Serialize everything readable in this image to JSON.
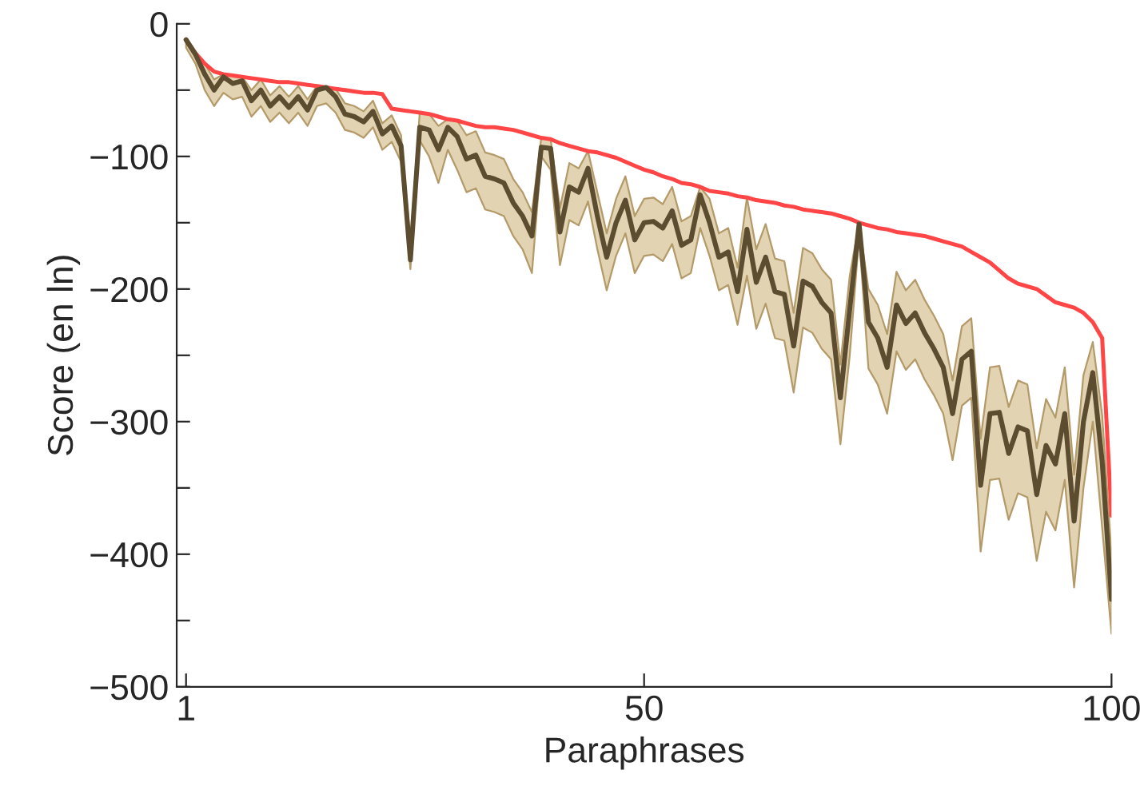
{
  "chart_data": {
    "type": "line",
    "xlabel": "Paraphrases",
    "ylabel": "Score (en ln)",
    "x": [
      1,
      2,
      3,
      4,
      5,
      6,
      7,
      8,
      9,
      10,
      11,
      12,
      13,
      14,
      15,
      16,
      17,
      18,
      19,
      20,
      21,
      22,
      23,
      24,
      25,
      26,
      27,
      28,
      29,
      30,
      31,
      32,
      33,
      34,
      35,
      36,
      37,
      38,
      39,
      40,
      41,
      42,
      43,
      44,
      45,
      46,
      47,
      48,
      49,
      50,
      51,
      52,
      53,
      54,
      55,
      56,
      57,
      58,
      59,
      60,
      61,
      62,
      63,
      64,
      65,
      66,
      67,
      68,
      69,
      70,
      71,
      72,
      73,
      74,
      75,
      76,
      77,
      78,
      79,
      80,
      81,
      82,
      83,
      84,
      85,
      86,
      87,
      88,
      89,
      90,
      91,
      92,
      93,
      94,
      95,
      96,
      97,
      98,
      99,
      100
    ],
    "series": [
      {
        "color": "#ff4545",
        "values": [
          -12,
          -22,
          -30,
          -36,
          -38,
          -39,
          -40,
          -41,
          -42,
          -43,
          -44,
          -44,
          -45,
          -46,
          -47,
          -48,
          -49,
          -50,
          -51,
          -52,
          -52,
          -53,
          -64,
          -65,
          -66,
          -67,
          -68,
          -70,
          -72,
          -73,
          -75,
          -77,
          -78,
          -78,
          -79,
          -80,
          -82,
          -84,
          -86,
          -87,
          -90,
          -92,
          -94,
          -96,
          -97,
          -99,
          -101,
          -104,
          -107,
          -110,
          -112,
          -115,
          -117,
          -120,
          -121,
          -123,
          -126,
          -127,
          -128,
          -130,
          -131,
          -133,
          -134,
          -135,
          -137,
          -138,
          -140,
          -141,
          -142,
          -143,
          -145,
          -147,
          -150,
          -152,
          -154,
          -155,
          -157,
          -158,
          -159,
          -160,
          -162,
          -164,
          -166,
          -168,
          -172,
          -176,
          -180,
          -186,
          -192,
          -196,
          -198,
          -200,
          -205,
          -210,
          -212,
          -214,
          -218,
          -225,
          -237,
          -371
        ]
      },
      {
        "color": "#5c4d30",
        "values": [
          -12,
          -23,
          -38,
          -50,
          -40,
          -45,
          -43,
          -58,
          -50,
          -62,
          -55,
          -63,
          -55,
          -65,
          -50,
          -48,
          -55,
          -68,
          -70,
          -74,
          -66,
          -83,
          -77,
          -92,
          -178,
          -78,
          -80,
          -95,
          -78,
          -85,
          -102,
          -99,
          -115,
          -117,
          -120,
          -135,
          -145,
          -160,
          -93,
          -94,
          -157,
          -123,
          -127,
          -109,
          -145,
          -176,
          -150,
          -133,
          -163,
          -150,
          -149,
          -154,
          -141,
          -167,
          -163,
          -129,
          -150,
          -176,
          -172,
          -202,
          -155,
          -195,
          -176,
          -202,
          -204,
          -243,
          -194,
          -198,
          -210,
          -218,
          -282,
          -215,
          -151,
          -225,
          -237,
          -259,
          -212,
          -226,
          -218,
          -233,
          -245,
          -259,
          -294,
          -253,
          -247,
          -348,
          -294,
          -293,
          -324,
          -304,
          -307,
          -355,
          -318,
          -332,
          -294,
          -375,
          -300,
          -263,
          -330,
          -434
        ],
        "upper": [
          -12,
          -22,
          -30,
          -42,
          -38,
          -39,
          -40,
          -50,
          -42,
          -54,
          -47,
          -55,
          -47,
          -57,
          -47,
          -48,
          -49,
          -60,
          -62,
          -66,
          -58,
          -75,
          -69,
          -84,
          -165,
          -67,
          -68,
          -77,
          -72,
          -73,
          -84,
          -81,
          -97,
          -99,
          -102,
          -117,
          -127,
          -142,
          -86,
          -87,
          -139,
          -105,
          -109,
          -96,
          -127,
          -158,
          -132,
          -115,
          -145,
          -132,
          -131,
          -136,
          -123,
          -149,
          -145,
          -123,
          -132,
          -158,
          -154,
          -184,
          -131,
          -170,
          -151,
          -177,
          -179,
          -218,
          -169,
          -173,
          -185,
          -193,
          -257,
          -190,
          -150,
          -200,
          -212,
          -234,
          -187,
          -201,
          -193,
          -208,
          -220,
          -234,
          -269,
          -228,
          -222,
          -313,
          -259,
          -258,
          -289,
          -269,
          -272,
          -320,
          -283,
          -297,
          -259,
          -340,
          -265,
          -240,
          -295,
          -400
        ],
        "lower": [
          -18,
          -30,
          -50,
          -62,
          -52,
          -57,
          -55,
          -70,
          -62,
          -74,
          -67,
          -75,
          -67,
          -77,
          -62,
          -60,
          -67,
          -80,
          -82,
          -86,
          -78,
          -95,
          -89,
          -104,
          -185,
          -88,
          -100,
          -120,
          -95,
          -110,
          -127,
          -124,
          -140,
          -142,
          -145,
          -160,
          -170,
          -188,
          -100,
          -110,
          -182,
          -148,
          -152,
          -134,
          -170,
          -201,
          -175,
          -158,
          -188,
          -175,
          -174,
          -179,
          -166,
          -192,
          -188,
          -154,
          -175,
          -201,
          -197,
          -227,
          -190,
          -230,
          -211,
          -237,
          -239,
          -278,
          -229,
          -233,
          -245,
          -253,
          -317,
          -250,
          -160,
          -260,
          -272,
          -294,
          -247,
          -261,
          -253,
          -268,
          -280,
          -294,
          -329,
          -288,
          -282,
          -398,
          -344,
          -343,
          -374,
          -354,
          -357,
          -405,
          -368,
          -382,
          -344,
          -425,
          -350,
          -300,
          -380,
          -460
        ]
      }
    ],
    "xlim": [
      0,
      100
    ],
    "xticks": [
      1,
      50,
      100
    ],
    "ylim": [
      -500,
      0
    ],
    "yticks": [
      {
        "value": -500,
        "label": "−500"
      },
      {
        "value": -450,
        "label": null
      },
      {
        "value": -400,
        "label": "−400"
      },
      {
        "value": -350,
        "label": null
      },
      {
        "value": -300,
        "label": "−300"
      },
      {
        "value": -250,
        "label": null
      },
      {
        "value": -200,
        "label": "−200"
      },
      {
        "value": -150,
        "label": null
      },
      {
        "value": -100,
        "label": "−100"
      },
      {
        "value": -50,
        "label": null
      },
      0
    ],
    "grid": false,
    "legend": false
  }
}
